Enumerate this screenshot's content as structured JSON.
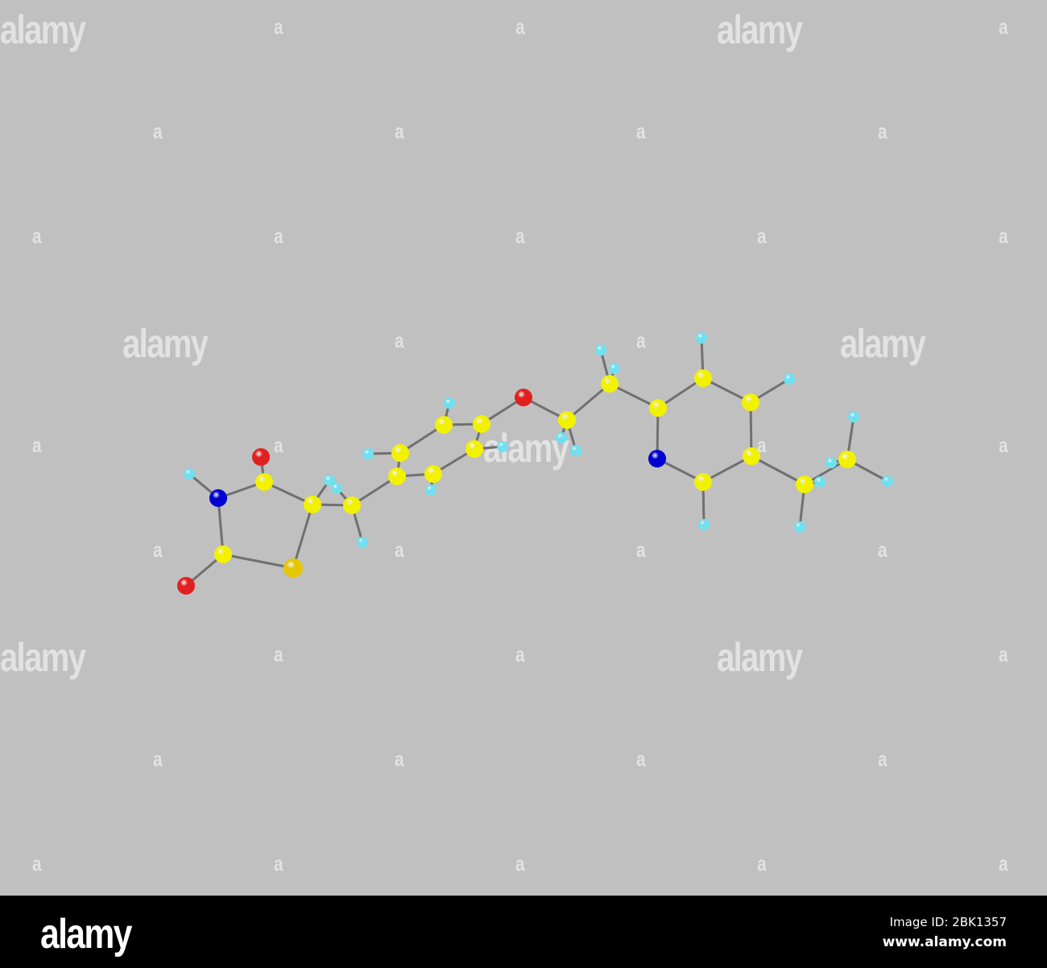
{
  "watermark": {
    "word": "alamy",
    "letter": "a"
  },
  "footer": {
    "logo": "alamy",
    "image_id": "Image ID: 2BK1357",
    "url": "www.alamy.com"
  },
  "colors": {
    "background": "#c0c0c0",
    "carbon": "#f2f200",
    "sulfur": "#e6c800",
    "oxygen": "#e02020",
    "nitrogen": "#0000d0",
    "hydrogen": "#6fe0f0",
    "bond": "#707070"
  }
}
